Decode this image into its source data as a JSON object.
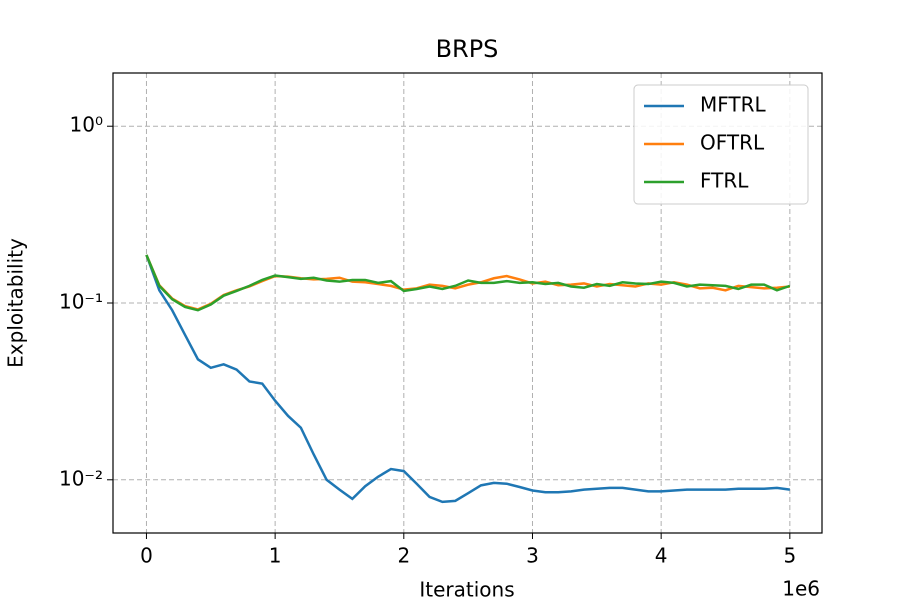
{
  "chart_data": {
    "type": "line",
    "title": "BRPS",
    "x_label": "Iterations",
    "y_label": "Exploitability",
    "x_offset_label": "1e6",
    "x": [
      0,
      100000,
      200000,
      300000,
      400000,
      500000,
      600000,
      700000,
      800000,
      900000,
      1000000,
      1100000,
      1200000,
      1300000,
      1400000,
      1500000,
      1600000,
      1700000,
      1800000,
      1900000,
      2000000,
      2100000,
      2200000,
      2300000,
      2400000,
      2500000,
      2600000,
      2700000,
      2800000,
      2900000,
      3000000,
      3100000,
      3200000,
      3300000,
      3400000,
      3500000,
      3600000,
      3700000,
      3800000,
      3900000,
      4000000,
      4100000,
      4200000,
      4300000,
      4400000,
      4500000,
      4600000,
      4700000,
      4800000,
      4900000,
      5000000
    ],
    "series": [
      {
        "name": "MFTRL",
        "color": "#1f77b4",
        "values": [
          0.187,
          0.118,
          0.091,
          0.066,
          0.048,
          0.043,
          0.045,
          0.042,
          0.036,
          0.035,
          0.028,
          0.023,
          0.0197,
          0.0139,
          0.01,
          0.0088,
          0.0078,
          0.0092,
          0.0104,
          0.0115,
          0.0112,
          0.0095,
          0.008,
          0.0075,
          0.0076,
          0.0084,
          0.0093,
          0.0096,
          0.0095,
          0.0091,
          0.0087,
          0.0085,
          0.0085,
          0.0086,
          0.0088,
          0.0089,
          0.009,
          0.009,
          0.0088,
          0.0086,
          0.0086,
          0.0087,
          0.0088,
          0.0088,
          0.0088,
          0.0088,
          0.0089,
          0.0089,
          0.0089,
          0.009,
          0.0088
        ]
      },
      {
        "name": "OFTRL",
        "color": "#ff7f0e",
        "values": [
          0.187,
          0.126,
          0.106,
          0.096,
          0.092,
          0.099,
          0.111,
          0.118,
          0.124,
          0.133,
          0.142,
          0.141,
          0.138,
          0.136,
          0.137,
          0.139,
          0.132,
          0.131,
          0.128,
          0.125,
          0.119,
          0.121,
          0.127,
          0.125,
          0.121,
          0.127,
          0.131,
          0.138,
          0.142,
          0.136,
          0.129,
          0.132,
          0.126,
          0.127,
          0.129,
          0.124,
          0.128,
          0.126,
          0.124,
          0.129,
          0.127,
          0.131,
          0.127,
          0.121,
          0.122,
          0.118,
          0.125,
          0.123,
          0.121,
          0.122,
          0.124
        ]
      },
      {
        "name": "FTRL",
        "color": "#2ca02c",
        "values": [
          0.187,
          0.125,
          0.105,
          0.095,
          0.091,
          0.098,
          0.11,
          0.117,
          0.125,
          0.135,
          0.143,
          0.14,
          0.137,
          0.139,
          0.134,
          0.132,
          0.135,
          0.135,
          0.13,
          0.133,
          0.117,
          0.12,
          0.124,
          0.12,
          0.125,
          0.134,
          0.13,
          0.13,
          0.133,
          0.13,
          0.131,
          0.128,
          0.13,
          0.124,
          0.122,
          0.128,
          0.125,
          0.131,
          0.129,
          0.128,
          0.132,
          0.13,
          0.124,
          0.127,
          0.126,
          0.125,
          0.12,
          0.127,
          0.127,
          0.118,
          0.125
        ]
      }
    ],
    "xlim": [
      -260000,
      5250000
    ],
    "xticks": [
      0,
      {
        "value": 1000000,
        "label": "1"
      },
      {
        "value": 2000000,
        "label": "2"
      },
      {
        "value": 3000000,
        "label": "3"
      },
      {
        "value": 4000000,
        "label": "4"
      },
      {
        "value": 5000000,
        "label": "5"
      }
    ],
    "ylim": [
      0.005,
      2
    ],
    "y_scale": "log",
    "yticks": [
      {
        "value": 0.01,
        "label": "10⁻²"
      },
      {
        "value": 0.1,
        "label": "10⁻¹"
      },
      {
        "value": 1,
        "label": "10⁰"
      }
    ],
    "grid": true,
    "legend_position": "upper-right"
  }
}
